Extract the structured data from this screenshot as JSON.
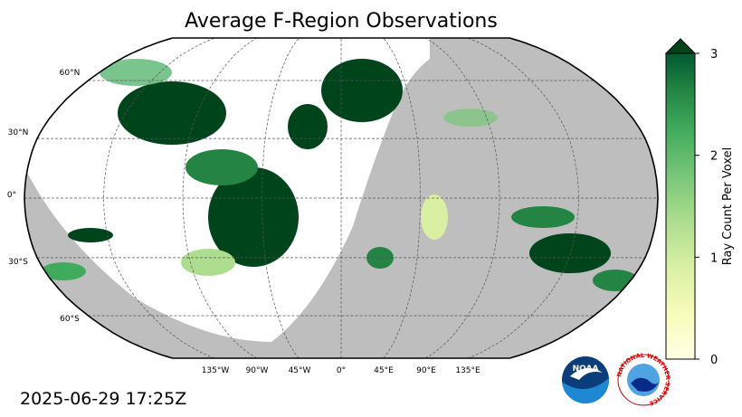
{
  "title": "Average F-Region Observations",
  "map": {
    "lat_labels": [
      "60°N",
      "30°N",
      "0°",
      "30°S",
      "60°S"
    ],
    "lon_labels": [
      "135°W",
      "90°W",
      "45°W",
      "0°",
      "45°E",
      "90°E",
      "135°E"
    ]
  },
  "colorbar": {
    "label": "Ray Count Per Voxel",
    "lim": [
      0,
      3
    ],
    "ticks": [
      0,
      1,
      2,
      3
    ],
    "extend": "max"
  },
  "timestamp": "2025-06-29 17:25Z",
  "logos": {
    "noaa": "NOAA",
    "nws": "NATIONAL WEATHER SERVICE"
  }
}
